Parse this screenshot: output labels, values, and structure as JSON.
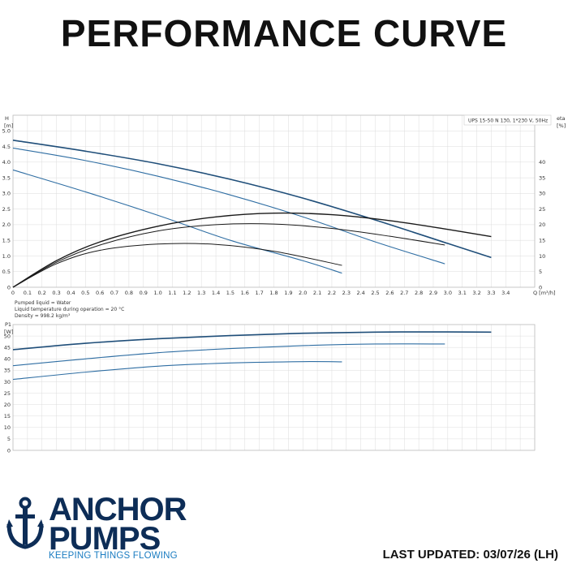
{
  "title": "PERFORMANCE CURVE",
  "colors": {
    "dark_blue": "#1f4e79",
    "mid_blue": "#2f6ea3",
    "black": "#1a1a1a",
    "grid": "#dcdcdc",
    "brand": "#0d2d57",
    "tagline": "#1a7cc1"
  },
  "chart_data": [
    {
      "type": "line",
      "label": "UPS 15-50 N 130, 1*230 V, 50Hz",
      "ylabel_line1": "H",
      "ylabel_line2": "[m]",
      "y2label_line1": "eta",
      "y2label_line2": "[%]",
      "xlabel": "Q [m³/h]",
      "xlim": [
        0,
        3.6
      ],
      "ylim": [
        0,
        5.5
      ],
      "y2lim": [
        0,
        55
      ],
      "x_ticks": [
        0,
        0.1,
        0.2,
        0.3,
        0.4,
        0.5,
        0.6,
        0.7,
        0.8,
        0.9,
        1.0,
        1.1,
        1.2,
        1.3,
        1.4,
        1.5,
        1.6,
        1.7,
        1.8,
        1.9,
        2.0,
        2.1,
        2.2,
        2.3,
        2.4,
        2.5,
        2.6,
        2.7,
        2.8,
        2.9,
        3.0,
        3.1,
        3.2,
        3.3,
        3.4
      ],
      "x_tick_labels": [
        "0",
        "0.1",
        "0.2",
        "0.3",
        "0.4",
        "0.5",
        "0.6",
        "0.7",
        "0.8",
        "0.9",
        "1.0",
        "1.1",
        "1.2",
        "1.3",
        "1.4",
        "1.5",
        "1.6",
        "1.7",
        "1.8",
        "1.9",
        "2.0",
        "2.1",
        "2.2",
        "2.3",
        "2.4",
        "2.5",
        "2.6",
        "2.7",
        "2.8",
        "2.9",
        "3.0",
        "3.1",
        "3.2",
        "3.3",
        "3.4"
      ],
      "y_ticks": [
        0,
        0.5,
        1.0,
        1.5,
        2.0,
        2.5,
        3.0,
        3.5,
        4.0,
        4.5,
        5.0
      ],
      "y_tick_labels": [
        "0",
        "0.5",
        "1.0",
        "1.5",
        "2.0",
        "2.5",
        "3.0",
        "3.5",
        "4.0",
        "4.5",
        "5.0"
      ],
      "y2_ticks": [
        0,
        5,
        10,
        15,
        20,
        25,
        30,
        35,
        40
      ],
      "y2_tick_labels": [
        "0",
        "5",
        "10",
        "15",
        "20",
        "25",
        "30",
        "35",
        "40"
      ],
      "grid": true,
      "series": [
        {
          "axis": "left",
          "color": "#1f4e79",
          "width": 1.6,
          "x": [
            0,
            0.5,
            1.0,
            1.5,
            2.0,
            2.5,
            3.0,
            3.3
          ],
          "y": [
            4.7,
            4.35,
            3.95,
            3.45,
            2.85,
            2.15,
            1.4,
            0.95
          ]
        },
        {
          "axis": "left",
          "color": "#2f6ea3",
          "width": 1.1,
          "x": [
            0,
            0.5,
            1.0,
            1.5,
            2.0,
            2.5,
            2.98
          ],
          "y": [
            4.45,
            4.05,
            3.55,
            2.95,
            2.25,
            1.45,
            0.75
          ]
        },
        {
          "axis": "left",
          "color": "#2f6ea3",
          "width": 1.1,
          "x": [
            0,
            0.5,
            1.0,
            1.5,
            2.0,
            2.27
          ],
          "y": [
            3.75,
            3.05,
            2.3,
            1.5,
            0.85,
            0.45
          ]
        },
        {
          "axis": "right",
          "color": "#1a1a1a",
          "width": 1.4,
          "x": [
            0,
            0.3,
            0.6,
            1.0,
            1.4,
            1.8,
            2.2,
            2.6,
            3.0,
            3.3
          ],
          "y": [
            0,
            8.5,
            14.5,
            19.5,
            22.5,
            23.7,
            23.2,
            21.3,
            18.5,
            16.2
          ]
        },
        {
          "axis": "right",
          "color": "#1a1a1a",
          "width": 1.0,
          "x": [
            0,
            0.3,
            0.6,
            1.0,
            1.4,
            1.8,
            2.2,
            2.6,
            2.98
          ],
          "y": [
            0,
            8,
            13.5,
            18,
            20,
            20.2,
            18.8,
            16.3,
            13.5
          ]
        },
        {
          "axis": "right",
          "color": "#1a1a1a",
          "width": 1.0,
          "x": [
            0,
            0.3,
            0.6,
            1.0,
            1.4,
            1.8,
            2.27
          ],
          "y": [
            0,
            7.5,
            11.8,
            13.8,
            13.7,
            11.5,
            7.0
          ]
        }
      ]
    },
    {
      "type": "line",
      "ylabel_line1": "P1",
      "ylabel_line2": "[W]",
      "xlim": [
        0,
        3.6
      ],
      "ylim": [
        0,
        55
      ],
      "y_ticks": [
        0,
        5,
        10,
        15,
        20,
        25,
        30,
        35,
        40,
        45,
        50
      ],
      "y_tick_labels": [
        "0",
        "5",
        "10",
        "15",
        "20",
        "25",
        "30",
        "35",
        "40",
        "45",
        "50"
      ],
      "grid": true,
      "series": [
        {
          "color": "#1f4e79",
          "width": 1.6,
          "x": [
            0,
            0.5,
            1.0,
            1.5,
            2.0,
            2.5,
            3.0,
            3.3
          ],
          "y": [
            44,
            46.8,
            48.8,
            50.2,
            51.2,
            51.7,
            51.8,
            51.7
          ]
        },
        {
          "color": "#2f6ea3",
          "width": 1.1,
          "x": [
            0,
            0.5,
            1.0,
            1.5,
            2.0,
            2.5,
            2.98
          ],
          "y": [
            37,
            40,
            42.7,
            44.5,
            45.8,
            46.5,
            46.5
          ]
        },
        {
          "color": "#2f6ea3",
          "width": 1.1,
          "x": [
            0,
            0.5,
            1.0,
            1.5,
            2.0,
            2.27
          ],
          "y": [
            31,
            34.2,
            36.8,
            38.2,
            38.8,
            38.7
          ]
        }
      ]
    }
  ],
  "notes": [
    "Pumped liquid = Water",
    "Liquid temperature during operation = 20 °C",
    "Density = 998.2 kg/m³"
  ],
  "logo": {
    "line1": "ANCHOR",
    "line2": "PUMPS",
    "tagline": "KEEPING THINGS FLOWING",
    "icon": "anchor-icon"
  },
  "last_updated": "LAST UPDATED: 03/07/26 (LH)"
}
